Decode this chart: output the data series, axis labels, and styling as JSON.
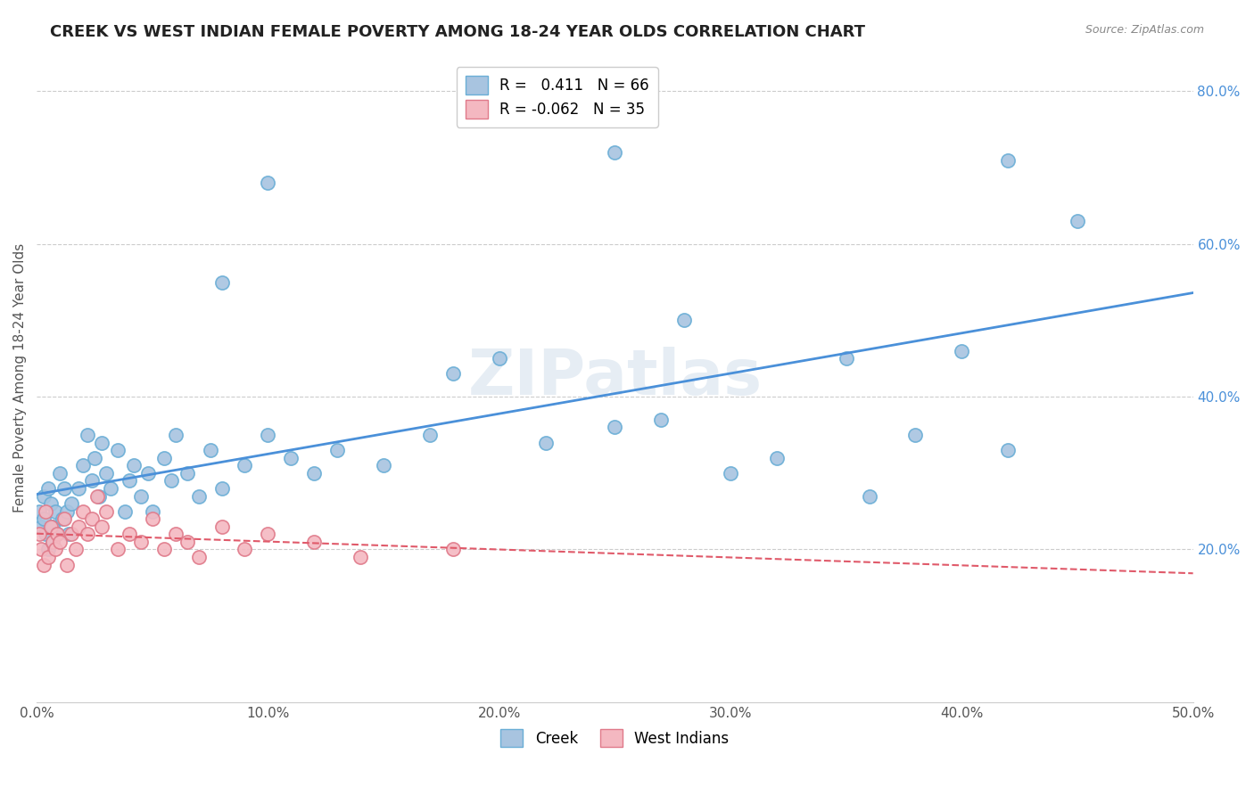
{
  "title": "CREEK VS WEST INDIAN FEMALE POVERTY AMONG 18-24 YEAR OLDS CORRELATION CHART",
  "source": "Source: ZipAtlas.com",
  "ylabel": "Female Poverty Among 18-24 Year Olds",
  "xlim": [
    0.0,
    0.5
  ],
  "ylim": [
    0.0,
    0.85
  ],
  "xticks": [
    0.0,
    0.1,
    0.2,
    0.3,
    0.4,
    0.5
  ],
  "xticklabels": [
    "0.0%",
    "10.0%",
    "20.0%",
    "30.0%",
    "40.0%",
    "50.0%"
  ],
  "yticks": [
    0.2,
    0.4,
    0.6,
    0.8
  ],
  "yticklabels": [
    "20.0%",
    "40.0%",
    "60.0%",
    "80.0%"
  ],
  "creek_color": "#a8c4e0",
  "creek_edge_color": "#6aaed6",
  "west_indian_color": "#f4b8c1",
  "west_indian_edge_color": "#e07a8a",
  "creek_line_color": "#4a90d9",
  "west_indian_line_color": "#e05a6a",
  "creek_R": 0.411,
  "creek_N": 66,
  "west_indian_R": -0.062,
  "west_indian_N": 35,
  "watermark": "ZIPatlas",
  "grid_color": "#cccccc",
  "background_color": "#ffffff",
  "creek_x": [
    0.001,
    0.002,
    0.003,
    0.003,
    0.004,
    0.005,
    0.005,
    0.006,
    0.007,
    0.007,
    0.008,
    0.009,
    0.01,
    0.011,
    0.012,
    0.013,
    0.014,
    0.015,
    0.018,
    0.02,
    0.022,
    0.024,
    0.025,
    0.027,
    0.028,
    0.03,
    0.032,
    0.035,
    0.038,
    0.04,
    0.042,
    0.045,
    0.048,
    0.05,
    0.055,
    0.058,
    0.06,
    0.065,
    0.07,
    0.075,
    0.08,
    0.09,
    0.1,
    0.11,
    0.12,
    0.13,
    0.15,
    0.17,
    0.18,
    0.2,
    0.22,
    0.25,
    0.27,
    0.3,
    0.32,
    0.35,
    0.36,
    0.38,
    0.4,
    0.42,
    0.28,
    0.08,
    0.1,
    0.25,
    0.42,
    0.45
  ],
  "creek_y": [
    0.25,
    0.23,
    0.27,
    0.24,
    0.22,
    0.28,
    0.2,
    0.26,
    0.23,
    0.21,
    0.25,
    0.22,
    0.3,
    0.24,
    0.28,
    0.25,
    0.22,
    0.26,
    0.28,
    0.31,
    0.35,
    0.29,
    0.32,
    0.27,
    0.34,
    0.3,
    0.28,
    0.33,
    0.25,
    0.29,
    0.31,
    0.27,
    0.3,
    0.25,
    0.32,
    0.29,
    0.35,
    0.3,
    0.27,
    0.33,
    0.28,
    0.31,
    0.35,
    0.32,
    0.3,
    0.33,
    0.31,
    0.35,
    0.43,
    0.45,
    0.34,
    0.36,
    0.37,
    0.3,
    0.32,
    0.45,
    0.27,
    0.35,
    0.46,
    0.33,
    0.5,
    0.55,
    0.68,
    0.72,
    0.71,
    0.63
  ],
  "west_indian_x": [
    0.001,
    0.002,
    0.003,
    0.004,
    0.005,
    0.006,
    0.007,
    0.008,
    0.009,
    0.01,
    0.012,
    0.013,
    0.015,
    0.017,
    0.018,
    0.02,
    0.022,
    0.024,
    0.026,
    0.028,
    0.03,
    0.035,
    0.04,
    0.045,
    0.05,
    0.055,
    0.06,
    0.065,
    0.07,
    0.08,
    0.09,
    0.1,
    0.12,
    0.14,
    0.18
  ],
  "west_indian_y": [
    0.22,
    0.2,
    0.18,
    0.25,
    0.19,
    0.23,
    0.21,
    0.2,
    0.22,
    0.21,
    0.24,
    0.18,
    0.22,
    0.2,
    0.23,
    0.25,
    0.22,
    0.24,
    0.27,
    0.23,
    0.25,
    0.2,
    0.22,
    0.21,
    0.24,
    0.2,
    0.22,
    0.21,
    0.19,
    0.23,
    0.2,
    0.22,
    0.21,
    0.19,
    0.2
  ]
}
